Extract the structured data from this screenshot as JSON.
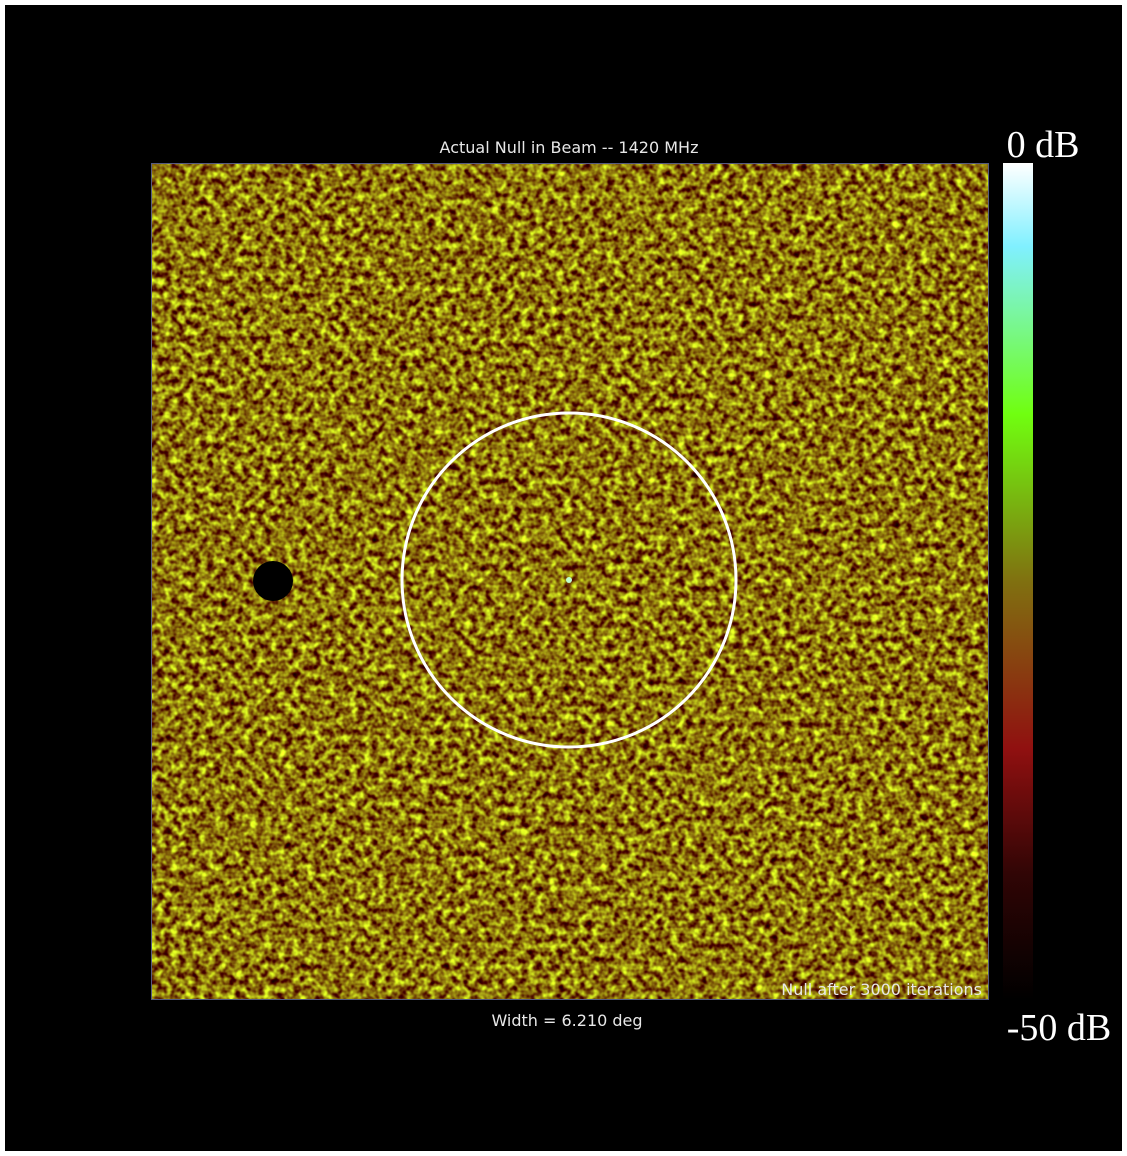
{
  "plot": {
    "title": "Actual Null in Beam -- 1420 MHz",
    "annotation": "Null after 3000 iterations",
    "caption": "Width = 6.210 deg"
  },
  "colorbar": {
    "top_label": "0 dB",
    "bottom_label": "-50 dB"
  }
}
